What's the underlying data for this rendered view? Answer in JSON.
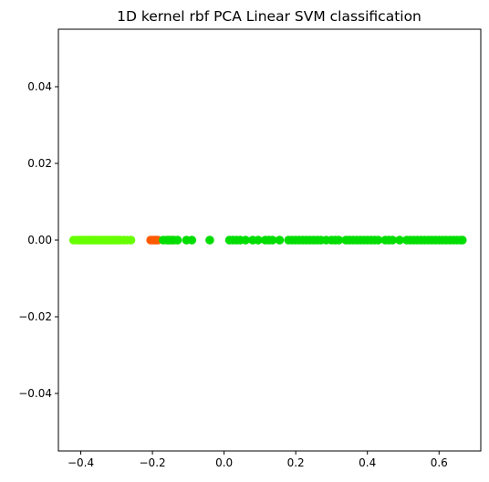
{
  "chart_data": {
    "type": "scatter",
    "title": "1D kernel rbf PCA Linear SVM classification",
    "xlabel": "",
    "ylabel": "",
    "xlim": [
      -0.4625,
      0.7165
    ],
    "ylim": [
      -0.055,
      0.055
    ],
    "x_ticks": [
      -0.4,
      -0.2,
      0.0,
      0.2,
      0.4,
      0.6
    ],
    "x_tick_labels": [
      "−0.4",
      "−0.2",
      "0.0",
      "0.2",
      "0.4",
      "0.6"
    ],
    "y_ticks": [
      0.04,
      0.02,
      0.0,
      -0.02,
      -0.04
    ],
    "y_tick_labels": [
      "0.04",
      "0.02",
      "0.00",
      "−0.02",
      "−0.04"
    ],
    "grid": false,
    "legend": "none",
    "colors": {
      "class_a": "#66ff00",
      "class_b": "#ff5a00",
      "class_c": "#00dd00"
    },
    "series": [
      {
        "color_key": "class_a",
        "x": [
          -0.42,
          -0.41,
          -0.405,
          -0.4,
          -0.395,
          -0.39,
          -0.385,
          -0.38,
          -0.375,
          -0.37,
          -0.365,
          -0.36,
          -0.355,
          -0.35,
          -0.345,
          -0.34,
          -0.335,
          -0.33,
          -0.325,
          -0.32,
          -0.315,
          -0.31,
          -0.305,
          -0.3,
          -0.295,
          -0.29,
          -0.28,
          -0.27,
          -0.26
        ],
        "y": [
          0,
          0,
          0,
          0,
          0,
          0,
          0,
          0,
          0,
          0,
          0,
          0,
          0,
          0,
          0,
          0,
          0,
          0,
          0,
          0,
          0,
          0,
          0,
          0,
          0,
          0,
          0,
          0,
          0
        ]
      },
      {
        "color_key": "class_b",
        "x": [
          -0.205,
          -0.2,
          -0.195,
          -0.19,
          -0.185,
          -0.145
        ],
        "y": [
          0,
          0,
          0,
          0,
          0,
          0
        ]
      },
      {
        "color_key": "class_c",
        "x": [
          -0.17,
          -0.16,
          -0.155,
          -0.15,
          -0.14,
          -0.13,
          -0.105,
          -0.09,
          -0.04,
          0.015,
          0.025,
          0.035,
          0.045,
          0.06,
          0.08,
          0.095,
          0.115,
          0.125,
          0.135,
          0.155,
          0.18,
          0.19,
          0.2,
          0.21,
          0.22,
          0.23,
          0.24,
          0.25,
          0.26,
          0.27,
          0.285,
          0.3,
          0.31,
          0.32,
          0.34,
          0.35,
          0.36,
          0.37,
          0.38,
          0.39,
          0.4,
          0.41,
          0.42,
          0.43,
          0.45,
          0.46,
          0.47,
          0.49,
          0.51,
          0.52,
          0.53,
          0.54,
          0.55,
          0.56,
          0.57,
          0.58,
          0.59,
          0.6,
          0.61,
          0.62,
          0.63,
          0.64,
          0.65,
          0.66,
          0.665
        ],
        "y": [
          0,
          0,
          0,
          0,
          0,
          0,
          0,
          0,
          0,
          0,
          0,
          0,
          0,
          0,
          0,
          0,
          0,
          0,
          0,
          0,
          0,
          0,
          0,
          0,
          0,
          0,
          0,
          0,
          0,
          0,
          0,
          0,
          0,
          0,
          0,
          0,
          0,
          0,
          0,
          0,
          0,
          0,
          0,
          0,
          0,
          0,
          0,
          0,
          0,
          0,
          0,
          0,
          0,
          0,
          0,
          0,
          0,
          0,
          0,
          0,
          0,
          0,
          0,
          0,
          0
        ]
      }
    ]
  }
}
